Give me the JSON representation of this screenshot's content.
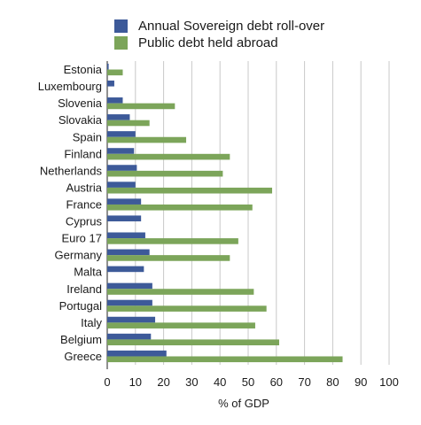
{
  "chart_data": {
    "type": "bar",
    "orientation": "horizontal",
    "title": "",
    "xlabel": "% of GDP",
    "ylabel": "",
    "xlim": [
      0,
      100
    ],
    "xticks": [
      "0",
      "10",
      "20",
      "30",
      "40",
      "50",
      "60",
      "70",
      "80",
      "90",
      "100"
    ],
    "grid": "vertical",
    "legend_position": "top",
    "categories": [
      "Estonia",
      "Luxembourg",
      "Slovenia",
      "Slovakia",
      "Spain",
      "Finland",
      "Netherlands",
      "Austria",
      "France",
      "Cyprus",
      "Euro 17",
      "Germany",
      "Malta",
      "Ireland",
      "Portugal",
      "Italy",
      "Belgium",
      "Greece"
    ],
    "series": [
      {
        "name": "Annual Sovereign debt roll-over",
        "color": "#3d5a99",
        "values": [
          0.5,
          2.5,
          5.5,
          8,
          10,
          9.5,
          10.5,
          10,
          12,
          12,
          13.5,
          15,
          13,
          16,
          16,
          17,
          15.5,
          21
        ]
      },
      {
        "name": "Public debt held abroad",
        "color": "#7ca55a",
        "values": [
          5.5,
          0,
          24,
          15,
          28,
          43.5,
          41,
          58.5,
          51.5,
          0,
          46.5,
          43.5,
          0,
          52,
          56.5,
          52.5,
          61,
          83.5
        ]
      }
    ]
  }
}
